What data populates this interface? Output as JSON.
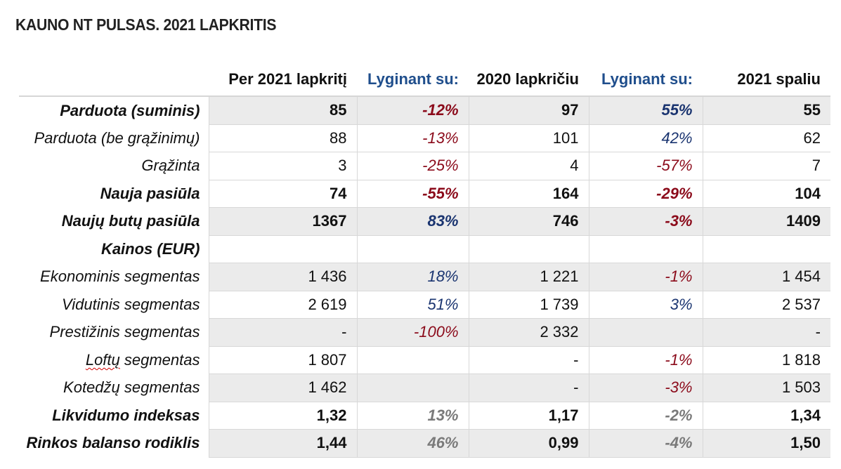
{
  "title": "KAUNO NT PULSAS. 2021 LAPKRITIS",
  "headers": [
    "",
    "Per 2021 lapkritį",
    "Lyginant su:",
    "2020 lapkričiu",
    "Lyginant su:",
    "2021 spaliu"
  ],
  "rows": [
    {
      "label": "Parduota (suminis)",
      "bold": true,
      "shade": true,
      "cells": [
        "85",
        "-12%",
        "97",
        "55%",
        "55"
      ],
      "tones": [
        "",
        "red",
        "",
        "blue",
        ""
      ]
    },
    {
      "label": "Parduota (be grąžinimų)",
      "bold": false,
      "shade": false,
      "cells": [
        "88",
        "-13%",
        "101",
        "42%",
        "62"
      ],
      "tones": [
        "",
        "red",
        "",
        "blue",
        ""
      ]
    },
    {
      "label": "Grąžinta",
      "bold": false,
      "shade": false,
      "cells": [
        "3",
        "-25%",
        "4",
        "-57%",
        "7"
      ],
      "tones": [
        "",
        "red",
        "",
        "red",
        ""
      ]
    },
    {
      "label": "Nauja pasiūla",
      "bold": true,
      "shade": false,
      "cells": [
        "74",
        "-55%",
        "164",
        "-29%",
        "104"
      ],
      "tones": [
        "",
        "red",
        "",
        "red",
        ""
      ]
    },
    {
      "label": "Naujų butų pasiūla",
      "bold": true,
      "shade": true,
      "cells": [
        "1367",
        "83%",
        "746",
        "-3%",
        "1409"
      ],
      "tones": [
        "",
        "blue",
        "",
        "red",
        ""
      ]
    },
    {
      "label": "Kainos (EUR)",
      "bold": true,
      "shade": false,
      "cells": [
        "",
        "",
        "",
        "",
        ""
      ],
      "tones": [
        "",
        "",
        "",
        "",
        ""
      ]
    },
    {
      "label": "Ekonominis segmentas",
      "bold": false,
      "shade": true,
      "cells": [
        "1 436",
        "18%",
        "1 221",
        "-1%",
        "1 454"
      ],
      "tones": [
        "",
        "blue",
        "",
        "red",
        ""
      ]
    },
    {
      "label": "Vidutinis segmentas",
      "bold": false,
      "shade": false,
      "cells": [
        "2 619",
        "51%",
        "1 739",
        "3%",
        "2 537"
      ],
      "tones": [
        "",
        "blue",
        "",
        "blue",
        ""
      ]
    },
    {
      "label": "Prestižinis segmentas",
      "bold": false,
      "shade": true,
      "cells": [
        "-",
        "-100%",
        "2 332",
        "",
        "-"
      ],
      "tones": [
        "",
        "red",
        "",
        "",
        ""
      ]
    },
    {
      "label": "Loftų segmentas",
      "bold": false,
      "shade": false,
      "squiggle": "Loftų",
      "cells": [
        "1 807",
        "",
        "-",
        "-1%",
        "1 818"
      ],
      "tones": [
        "",
        "",
        "",
        "red",
        ""
      ]
    },
    {
      "label": "Kotedžų segmentas",
      "bold": false,
      "shade": true,
      "cells": [
        "1 462",
        "",
        "-",
        "-3%",
        "1 503"
      ],
      "tones": [
        "",
        "",
        "",
        "red",
        ""
      ]
    },
    {
      "label": "Likvidumo indeksas",
      "bold": true,
      "shade": false,
      "cells": [
        "1,32",
        "13%",
        "1,17",
        "-2%",
        "1,34"
      ],
      "tones": [
        "",
        "gray",
        "",
        "gray",
        ""
      ]
    },
    {
      "label": "Rinkos balanso rodiklis",
      "bold": true,
      "shade": true,
      "cells": [
        "1,44",
        "46%",
        "0,99",
        "-4%",
        "1,50"
      ],
      "tones": [
        "",
        "gray",
        "",
        "gray",
        ""
      ]
    }
  ]
}
